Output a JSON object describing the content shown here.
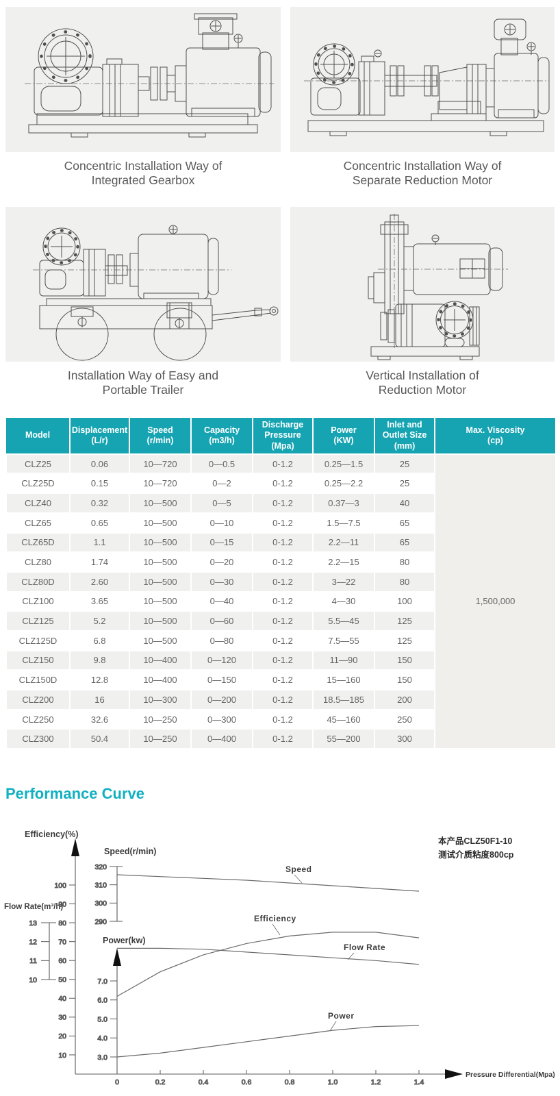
{
  "panels": [
    {
      "caption": "Concentric Installation Way of Integrated Gearbox"
    },
    {
      "caption": "Concentric Installation Way of Separate Reduction Motor"
    },
    {
      "caption": "Installation Way of Easy and Portable Trailer"
    },
    {
      "caption": "Vertical Installation of Reduction Motor"
    }
  ],
  "sections": {
    "performance_heading": "Performance Curve"
  },
  "table": {
    "headers": [
      {
        "lines": [
          "Model"
        ]
      },
      {
        "lines": [
          "Displacement",
          "(L/r)"
        ]
      },
      {
        "lines": [
          "Speed",
          "(r/min)"
        ]
      },
      {
        "lines": [
          "Capacity",
          "(m3/h)"
        ]
      },
      {
        "lines": [
          "Discharge",
          "Pressure",
          "(Mpa)"
        ]
      },
      {
        "lines": [
          "Power",
          "(KW)"
        ]
      },
      {
        "lines": [
          "Inlet and",
          "Outlet Size",
          "(mm)"
        ]
      },
      {
        "lines": [
          "Max. Viscosity",
          "(cp)"
        ]
      }
    ],
    "rows": [
      [
        "CLZ25",
        "0.06",
        "10—720",
        "0—0.5",
        "0-1.2",
        "0.25—1.5",
        "25"
      ],
      [
        "CLZ25D",
        "0.15",
        "10—720",
        "0—2",
        "0-1.2",
        "0.25—2.2",
        "25"
      ],
      [
        "CLZ40",
        "0.32",
        "10—500",
        "0—5",
        "0-1.2",
        "0.37—3",
        "40"
      ],
      [
        "CLZ65",
        "0.65",
        "10—500",
        "0—10",
        "0-1.2",
        "1.5—7.5",
        "65"
      ],
      [
        "CLZ65D",
        "1.1",
        "10—500",
        "0—15",
        "0-1.2",
        "2.2—11",
        "65"
      ],
      [
        "CLZ80",
        "1.74",
        "10—500",
        "0—20",
        "0-1.2",
        "2.2—15",
        "80"
      ],
      [
        "CLZ80D",
        "2.60",
        "10—500",
        "0—30",
        "0-1.2",
        "3—22",
        "80"
      ],
      [
        "CLZ100",
        "3.65",
        "10—500",
        "0—40",
        "0-1.2",
        "4—30",
        "100"
      ],
      [
        "CLZ125",
        "5.2",
        "10—500",
        "0—60",
        "0-1.2",
        "5.5—45",
        "125"
      ],
      [
        "CLZ125D",
        "6.8",
        "10—500",
        "0—80",
        "0-1.2",
        "7.5—55",
        "125"
      ],
      [
        "CLZ150",
        "9.8",
        "10—400",
        "0—120",
        "0-1.2",
        "11—90",
        "150"
      ],
      [
        "CLZ150D",
        "12.8",
        "10—400",
        "0—150",
        "0-1.2",
        "15—160",
        "150"
      ],
      [
        "CLZ200",
        "16",
        "10—300",
        "0—200",
        "0-1.2",
        "18.5—185",
        "200"
      ],
      [
        "CLZ250",
        "32.6",
        "10—250",
        "0—300",
        "0-1.2",
        "45—160",
        "250"
      ],
      [
        "CLZ300",
        "50.4",
        "10—250",
        "0—400",
        "0-1.2",
        "55—200",
        "300"
      ]
    ],
    "max_viscosity": "1,500,000"
  },
  "chart_data": {
    "type": "line",
    "title": "Performance Curve",
    "xlabel": "Pressure Differential(Mpa)",
    "x_ticks": [
      0,
      0.2,
      0.4,
      0.6,
      0.8,
      1.0,
      1.2,
      1.4
    ],
    "x_tick_labels": [
      "0",
      "0.2",
      "0.4",
      "0.6",
      "0.8",
      "1.0",
      "1.2",
      "1.4"
    ],
    "grid": false,
    "axes": [
      {
        "id": "efficiency",
        "label": "Efficiency(%)",
        "ticks": [
          10,
          20,
          30,
          40,
          50,
          60,
          70,
          80,
          90,
          100
        ]
      },
      {
        "id": "flow",
        "label": "Flow Rate(m³/h)",
        "ticks": [
          10,
          11,
          12,
          13
        ]
      },
      {
        "id": "speed",
        "label": "Speed(r/min)",
        "ticks": [
          290,
          300,
          310,
          320
        ]
      },
      {
        "id": "power",
        "label": "Power(kw)",
        "ticks": [
          3.0,
          4.0,
          5.0,
          6.0,
          7.0
        ]
      }
    ],
    "series": [
      {
        "name": "Speed",
        "axis": "speed",
        "x": [
          0,
          0.2,
          0.4,
          0.6,
          0.8,
          1.0,
          1.2,
          1.4
        ],
        "values": [
          315.5,
          314.5,
          313.5,
          312.5,
          311,
          309.5,
          308,
          306.5
        ]
      },
      {
        "name": "Efficiency",
        "axis": "efficiency",
        "x": [
          0,
          0.2,
          0.4,
          0.6,
          0.8,
          1.0,
          1.2,
          1.4
        ],
        "values": [
          41,
          54,
          63,
          69,
          73,
          75,
          75,
          72
        ]
      },
      {
        "name": "Flow Rate",
        "axis": "flow",
        "x": [
          0,
          0.2,
          0.4,
          0.6,
          0.8,
          1.0,
          1.2,
          1.4
        ],
        "values": [
          11.65,
          11.65,
          11.6,
          11.45,
          11.3,
          11.15,
          11.0,
          10.8
        ]
      },
      {
        "name": "Power",
        "axis": "power",
        "x": [
          0,
          0.2,
          0.4,
          0.6,
          0.8,
          1.0,
          1.2,
          1.4
        ],
        "values": [
          3.0,
          3.2,
          3.5,
          3.8,
          4.1,
          4.4,
          4.6,
          4.65
        ]
      }
    ],
    "annotation": [
      "本产品CLZ50F1-10",
      "测试介质粘度800cp"
    ]
  }
}
